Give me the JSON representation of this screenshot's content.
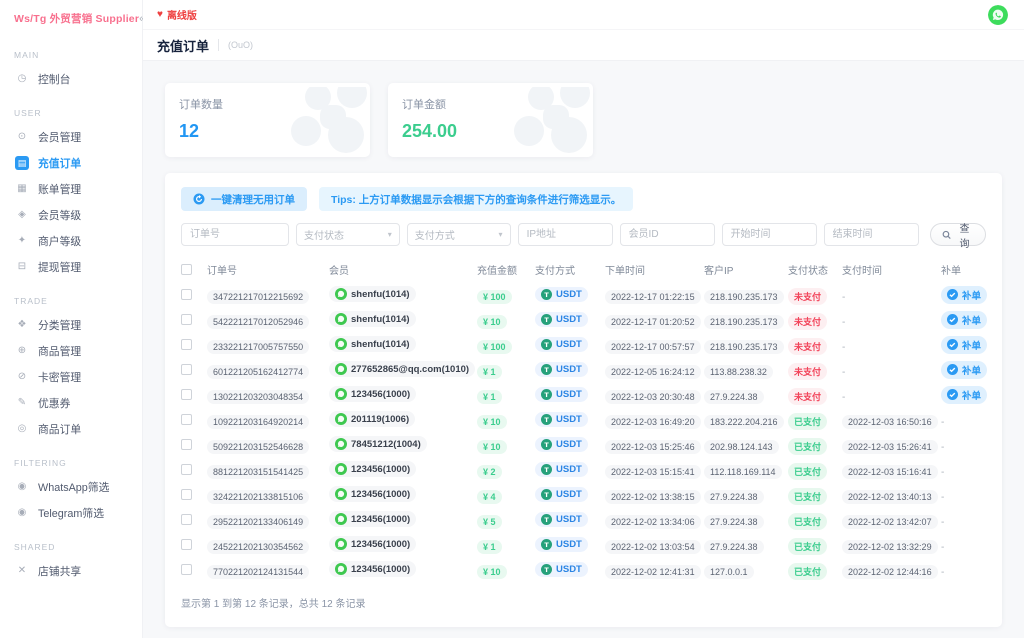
{
  "sidebar": {
    "brand": "Ws/Tg 外贸营销 Supplier",
    "collapse_icon": "«",
    "sections": [
      {
        "label": "MAIN",
        "items": [
          {
            "id": "dashboard",
            "label": "控制台",
            "icon": "dashboard-icon",
            "glyph": "◷",
            "active": false
          }
        ]
      },
      {
        "label": "USER",
        "items": [
          {
            "id": "members",
            "label": "会员管理",
            "icon": "member-manage-icon",
            "glyph": "⊙",
            "active": false
          },
          {
            "id": "recharge-orders",
            "label": "充值订单",
            "icon": "recharge-order-icon",
            "glyph": "▤",
            "active": true
          },
          {
            "id": "bills",
            "label": "账单管理",
            "icon": "bill-manage-icon",
            "glyph": "▦",
            "active": false
          },
          {
            "id": "member-level",
            "label": "会员等级",
            "icon": "member-level-icon",
            "glyph": "◈",
            "active": false
          },
          {
            "id": "merchant-level",
            "label": "商户等级",
            "icon": "merchant-level-icon",
            "glyph": "✦",
            "active": false
          },
          {
            "id": "withdraw",
            "label": "提现管理",
            "icon": "withdraw-icon",
            "glyph": "⊟",
            "active": false
          }
        ]
      },
      {
        "label": "TRADE",
        "items": [
          {
            "id": "category",
            "label": "分类管理",
            "icon": "category-icon",
            "glyph": "❖",
            "active": false
          },
          {
            "id": "goods",
            "label": "商品管理",
            "icon": "goods-icon",
            "glyph": "⊕",
            "active": false
          },
          {
            "id": "card-secret",
            "label": "卡密管理",
            "icon": "card-secret-icon",
            "glyph": "⊘",
            "active": false
          },
          {
            "id": "coupon",
            "label": "优惠券",
            "icon": "coupon-icon",
            "glyph": "✎",
            "active": false
          },
          {
            "id": "goods-orders",
            "label": "商品订单",
            "icon": "goods-order-icon",
            "glyph": "◎",
            "active": false
          }
        ]
      },
      {
        "label": "FILTERING",
        "items": [
          {
            "id": "whatsapp-filter",
            "label": "WhatsApp筛选",
            "icon": "whatsapp-filter-icon",
            "glyph": "◉",
            "active": false
          },
          {
            "id": "telegram-filter",
            "label": "Telegram筛选",
            "icon": "telegram-filter-icon",
            "glyph": "◉",
            "active": false
          }
        ]
      },
      {
        "label": "SHARED",
        "items": [
          {
            "id": "shop-share",
            "label": "店铺共享",
            "icon": "shop-share-icon",
            "glyph": "✕",
            "active": false
          }
        ]
      }
    ]
  },
  "topbar": {
    "offline_label": "离线版",
    "heart_icon": "♥",
    "avatar_icon": "whatsapp-avatar-icon"
  },
  "page": {
    "title": "充值订单",
    "subtitle": "(OuO)"
  },
  "stats": [
    {
      "label": "订单数量",
      "value": "12",
      "color": "#2196f3"
    },
    {
      "label": "订单金额",
      "value": "254.00",
      "color": "#3bcd8e"
    }
  ],
  "toolbar": {
    "clean_button_label": "一键清理无用订单",
    "tips_text": "Tips: 上方订单数据显示会根据下方的查询条件进行筛选显示。"
  },
  "filters": {
    "order_no_placeholder": "订单号",
    "pay_status_placeholder": "支付状态",
    "pay_method_placeholder": "支付方式",
    "ip_placeholder": "IP地址",
    "member_id_placeholder": "会员ID",
    "start_time_placeholder": "开始时间",
    "end_time_placeholder": "结束时间",
    "search_label": "查询"
  },
  "table": {
    "headers": [
      "订单号",
      "会员",
      "充值金额",
      "支付方式",
      "下单时间",
      "客户IP",
      "支付状态",
      "支付时间",
      "补单"
    ],
    "rows": [
      {
        "order_no": "347221217012215692",
        "member": "shenfu(1014)",
        "amount": "¥ 100",
        "method": "USDT",
        "order_time": "2022-12-17 01:22:15",
        "client_ip": "218.190.235.173",
        "status": "未支付",
        "paid": false,
        "pay_time": "-",
        "supplement": "补单"
      },
      {
        "order_no": "542221217012052946",
        "member": "shenfu(1014)",
        "amount": "¥ 10",
        "method": "USDT",
        "order_time": "2022-12-17 01:20:52",
        "client_ip": "218.190.235.173",
        "status": "未支付",
        "paid": false,
        "pay_time": "-",
        "supplement": "补单"
      },
      {
        "order_no": "233221217005757550",
        "member": "shenfu(1014)",
        "amount": "¥ 100",
        "method": "USDT",
        "order_time": "2022-12-17 00:57:57",
        "client_ip": "218.190.235.173",
        "status": "未支付",
        "paid": false,
        "pay_time": "-",
        "supplement": "补单"
      },
      {
        "order_no": "601221205162412774",
        "member": "277652865@qq.com(1010)",
        "amount": "¥ 1",
        "method": "USDT",
        "order_time": "2022-12-05 16:24:12",
        "client_ip": "113.88.238.32",
        "status": "未支付",
        "paid": false,
        "pay_time": "-",
        "supplement": "补单"
      },
      {
        "order_no": "130221203203048354",
        "member": "123456(1000)",
        "amount": "¥ 1",
        "method": "USDT",
        "order_time": "2022-12-03 20:30:48",
        "client_ip": "27.9.224.38",
        "status": "未支付",
        "paid": false,
        "pay_time": "-",
        "supplement": "补单"
      },
      {
        "order_no": "109221203164920214",
        "member": "201119(1006)",
        "amount": "¥ 10",
        "method": "USDT",
        "order_time": "2022-12-03 16:49:20",
        "client_ip": "183.222.204.216",
        "status": "已支付",
        "paid": true,
        "pay_time": "2022-12-03 16:50:16",
        "supplement": "-"
      },
      {
        "order_no": "509221203152546628",
        "member": "78451212(1004)",
        "amount": "¥ 10",
        "method": "USDT",
        "order_time": "2022-12-03 15:25:46",
        "client_ip": "202.98.124.143",
        "status": "已支付",
        "paid": true,
        "pay_time": "2022-12-03 15:26:41",
        "supplement": "-"
      },
      {
        "order_no": "881221203151541425",
        "member": "123456(1000)",
        "amount": "¥ 2",
        "method": "USDT",
        "order_time": "2022-12-03 15:15:41",
        "client_ip": "112.118.169.114",
        "status": "已支付",
        "paid": true,
        "pay_time": "2022-12-03 15:16:41",
        "supplement": "-"
      },
      {
        "order_no": "324221202133815106",
        "member": "123456(1000)",
        "amount": "¥ 4",
        "method": "USDT",
        "order_time": "2022-12-02 13:38:15",
        "client_ip": "27.9.224.38",
        "status": "已支付",
        "paid": true,
        "pay_time": "2022-12-02 13:40:13",
        "supplement": "-"
      },
      {
        "order_no": "295221202133406149",
        "member": "123456(1000)",
        "amount": "¥ 5",
        "method": "USDT",
        "order_time": "2022-12-02 13:34:06",
        "client_ip": "27.9.224.38",
        "status": "已支付",
        "paid": true,
        "pay_time": "2022-12-02 13:42:07",
        "supplement": "-"
      },
      {
        "order_no": "245221202130354562",
        "member": "123456(1000)",
        "amount": "¥ 1",
        "method": "USDT",
        "order_time": "2022-12-02 13:03:54",
        "client_ip": "27.9.224.38",
        "status": "已支付",
        "paid": true,
        "pay_time": "2022-12-02 13:32:29",
        "supplement": "-"
      },
      {
        "order_no": "770221202124131544",
        "member": "123456(1000)",
        "amount": "¥ 10",
        "method": "USDT",
        "order_time": "2022-12-02 12:41:31",
        "client_ip": "127.0.0.1",
        "status": "已支付",
        "paid": true,
        "pay_time": "2022-12-02 12:44:16",
        "supplement": "-"
      }
    ],
    "footer": "显示第 1 到第 12 条记录，总共 12 条记录"
  },
  "colors": {
    "accent_blue": "#2b9af3",
    "accent_green": "#3bcd8e",
    "accent_red": "#f2445a",
    "brand_pink": "#f8708e",
    "tether_green": "#26a17b",
    "whatsapp_green": "#3ec850"
  }
}
